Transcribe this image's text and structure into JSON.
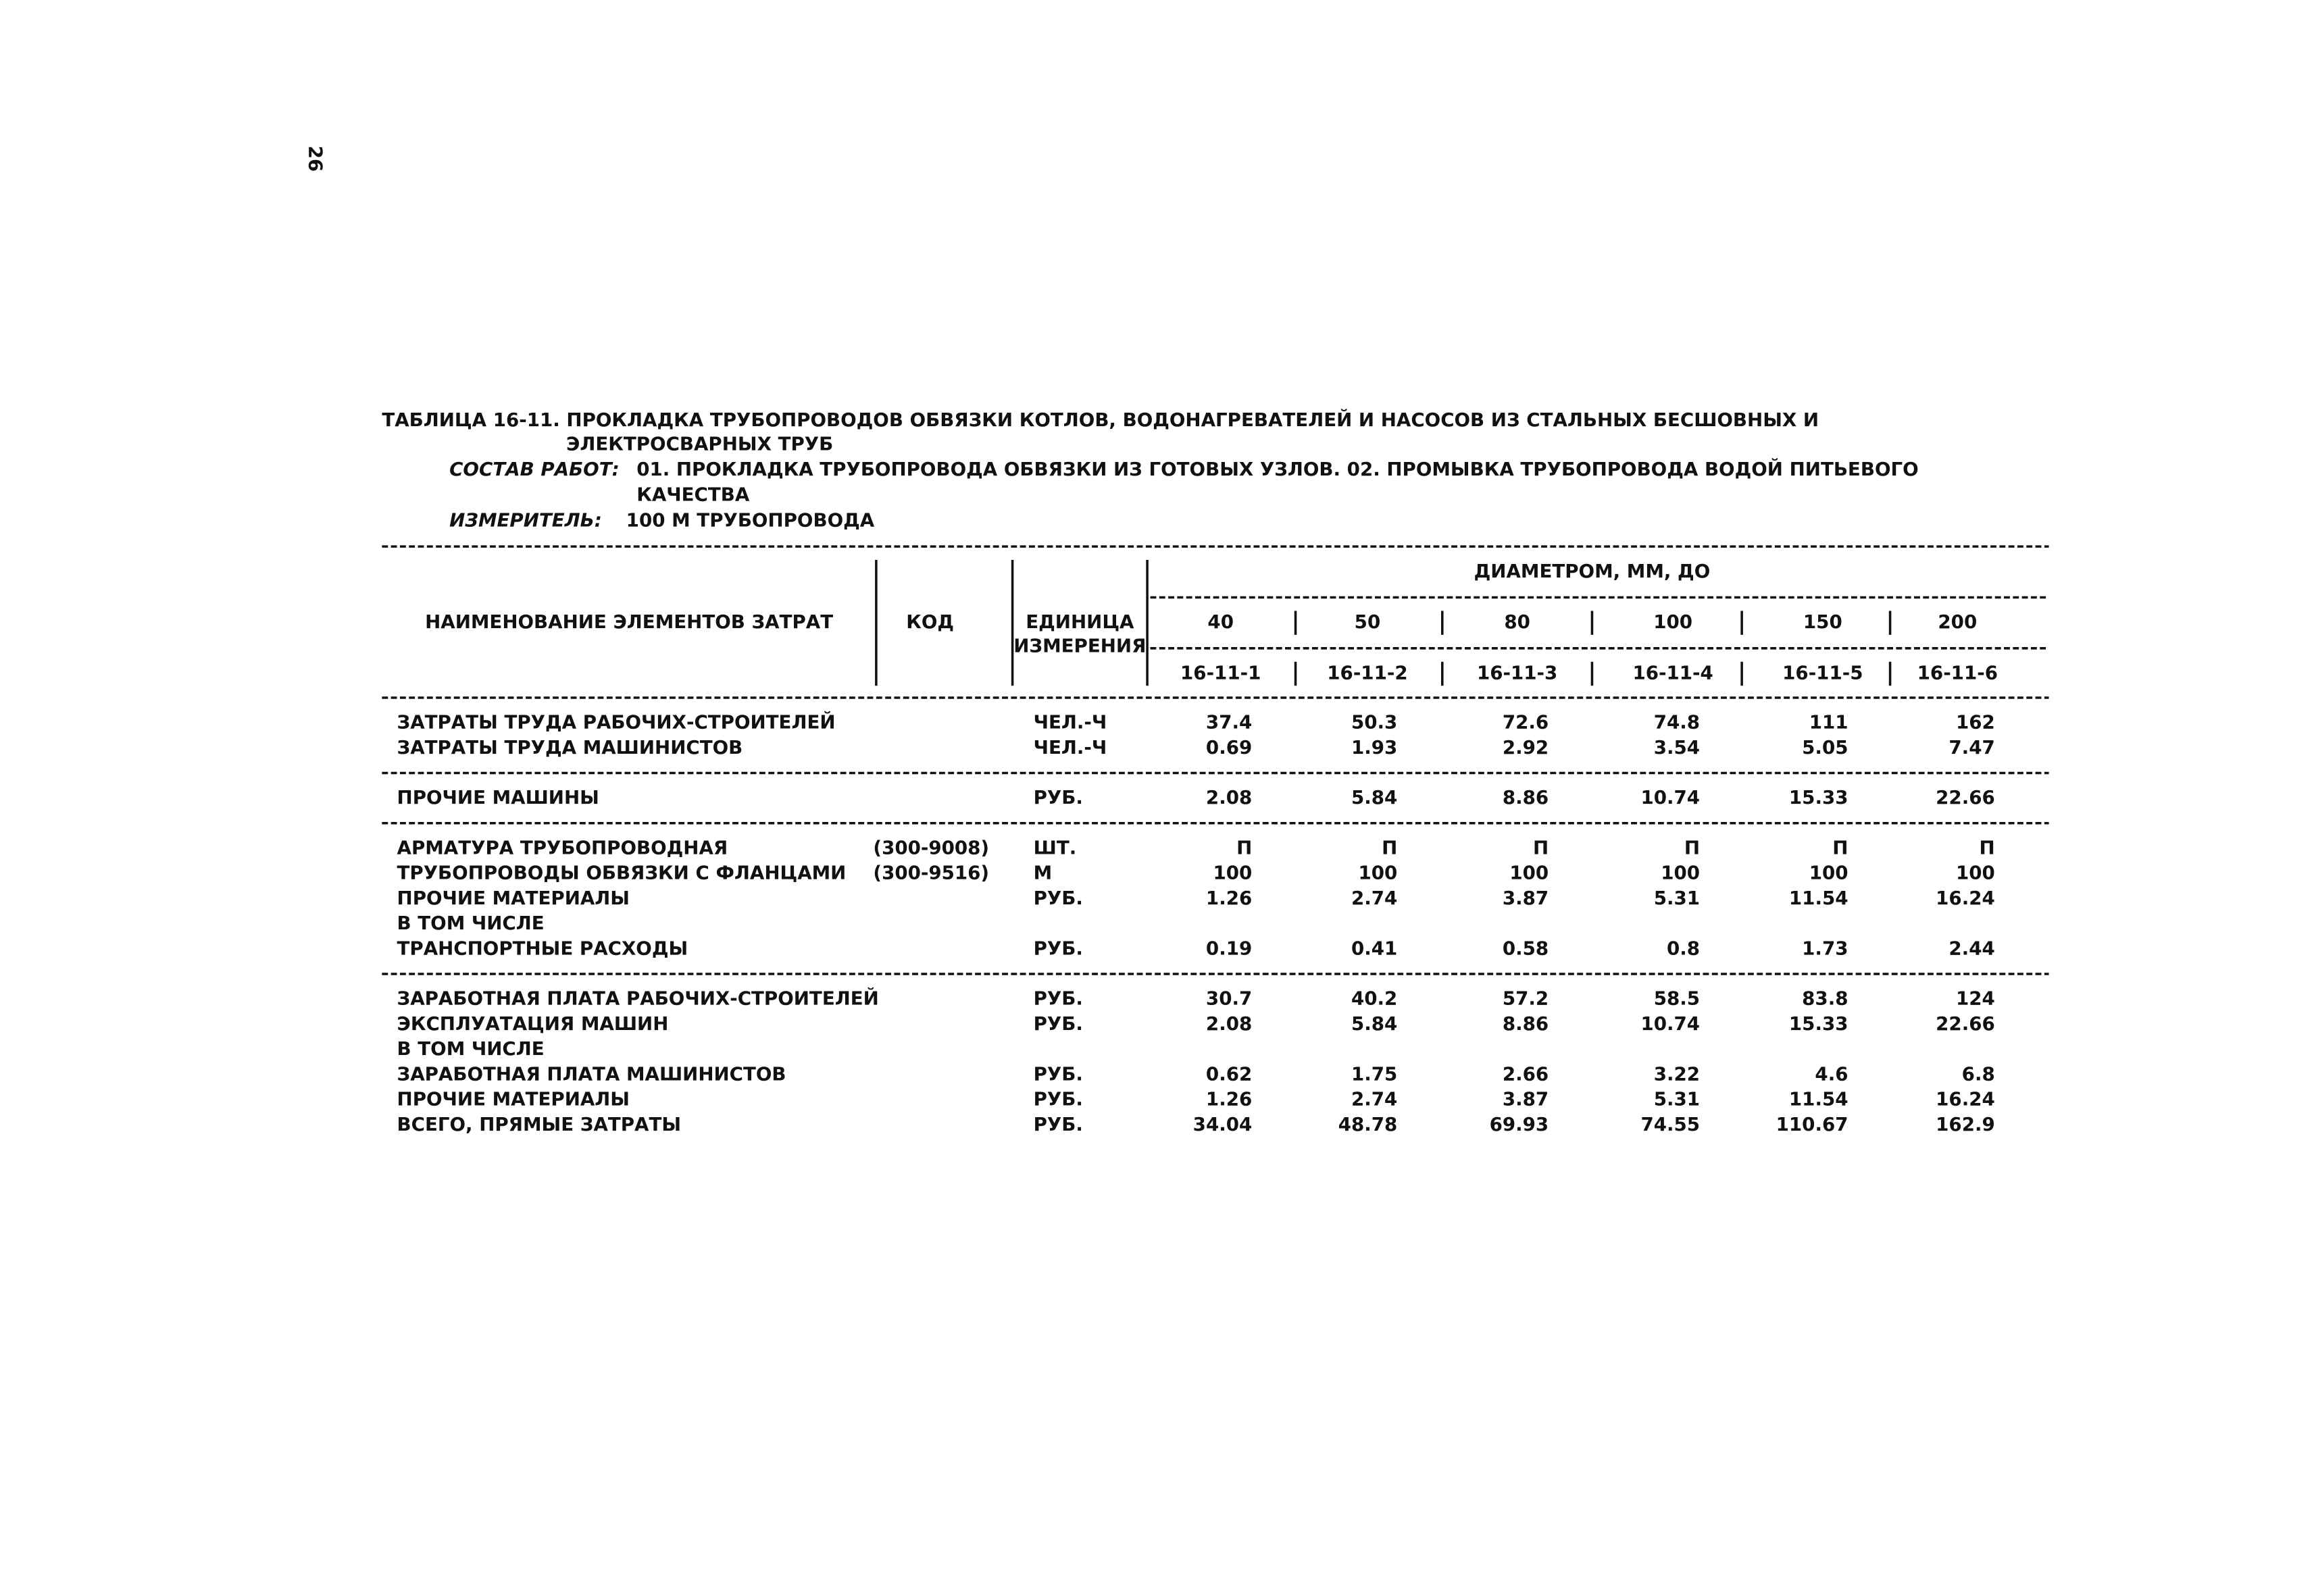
{
  "page_number": "26",
  "header": {
    "title": [
      "ТАБЛИЦА 16-11. ПРОКЛАДКА ТРУБОПРОВОДОВ ОБВЯЗКИ КОТЛОВ, ВОДОНАГРЕВАТЕЛЕЙ И НАСОСОВ ИЗ СТАЛЬНЫХ БЕСШОВНЫХ И",
      "ЭЛЕКТРОСВАРНЫХ ТРУБ"
    ],
    "composition_label": "СОСТАВ РАБОТ:",
    "composition": [
      "01. ПРОКЛАДКА ТРУБОПРОВОДА ОБВЯЗКИ ИЗ ГОТОВЫХ УЗЛОВ. 02. ПРОМЫВКА ТРУБОПРОВОДА ВОДОЙ ПИТЬЕВОГО",
      "КАЧЕСТВА"
    ],
    "measure_label": "ИЗМЕРИТЕЛЬ:",
    "measure": "100 М ТРУБОПРОВОДА"
  },
  "table": {
    "columns": {
      "name": "НАИМЕНОВАНИЕ ЭЛЕМЕНТОВ ЗАТРАТ",
      "code": "КОД",
      "unit": [
        "ЕДИНИЦА",
        "ИЗМЕРЕНИЯ"
      ],
      "group": "ДИАМЕТРОМ, ММ, ДО",
      "diameters": [
        40,
        50,
        80,
        100,
        150,
        200
      ],
      "codes": [
        "16-11-1",
        "16-11-2",
        "16-11-3",
        "16-11-4",
        "16-11-5",
        "16-11-6"
      ]
    },
    "groups": [
      [
        {
          "name": "ЗАТРАТЫ ТРУДА РАБОЧИХ-СТРОИТЕЛЕЙ",
          "unit": "ЧЕЛ.-Ч",
          "values": [
            37.4,
            50.3,
            72.6,
            74.8,
            111,
            162
          ]
        },
        {
          "name": "ЗАТРАТЫ ТРУДА МАШИНИСТОВ",
          "unit": "ЧЕЛ.-Ч",
          "values": [
            0.69,
            1.93,
            2.92,
            3.54,
            5.05,
            7.47
          ]
        }
      ],
      [
        {
          "name": "ПРОЧИЕ МАШИНЫ",
          "unit": "РУБ.",
          "values": [
            2.08,
            5.84,
            8.86,
            10.74,
            15.33,
            22.66
          ]
        }
      ],
      [
        {
          "name": "АРМАТУРА ТРУБОПРОВОДНАЯ",
          "code": "(300-9008)",
          "unit": "ШТ.",
          "values": [
            "П",
            "П",
            "П",
            "П",
            "П",
            "П"
          ]
        },
        {
          "name": "ТРУБОПРОВОДЫ ОБВЯЗКИ С ФЛАНЦАМИ",
          "code": "(300-9516)",
          "unit": "М",
          "values": [
            100,
            100,
            100,
            100,
            100,
            100
          ]
        },
        {
          "name": "ПРОЧИЕ МАТЕРИАЛЫ",
          "unit": "РУБ.",
          "values": [
            1.26,
            2.74,
            3.87,
            5.31,
            11.54,
            16.24
          ]
        },
        {
          "name": "В ТОМ ЧИСЛЕ"
        },
        {
          "name": "ТРАНСПОРТНЫЕ РАСХОДЫ",
          "unit": "РУБ.",
          "values": [
            0.19,
            0.41,
            0.58,
            0.8,
            1.73,
            2.44
          ]
        }
      ],
      [
        {
          "name": "ЗАРАБОТНАЯ ПЛАТА РАБОЧИХ-СТРОИТЕЛЕЙ",
          "unit": "РУБ.",
          "values": [
            30.7,
            40.2,
            57.2,
            58.5,
            83.8,
            124
          ]
        },
        {
          "name": "ЭКСПЛУАТАЦИЯ МАШИН",
          "unit": "РУБ.",
          "values": [
            2.08,
            5.84,
            8.86,
            10.74,
            15.33,
            22.66
          ]
        },
        {
          "name": "В ТОМ ЧИСЛЕ"
        },
        {
          "name": "ЗАРАБОТНАЯ ПЛАТА МАШИНИСТОВ",
          "unit": "РУБ.",
          "values": [
            0.62,
            1.75,
            2.66,
            3.22,
            4.6,
            6.8
          ]
        },
        {
          "name": "ПРОЧИЕ МАТЕРИАЛЫ",
          "unit": "РУБ.",
          "values": [
            1.26,
            2.74,
            3.87,
            5.31,
            11.54,
            16.24
          ]
        },
        {
          "name": "ВСЕГО, ПРЯМЫЕ ЗАТРАТЫ",
          "unit": "РУБ.",
          "values": [
            34.04,
            48.78,
            69.93,
            74.55,
            110.67,
            162.9
          ]
        }
      ]
    ]
  }
}
